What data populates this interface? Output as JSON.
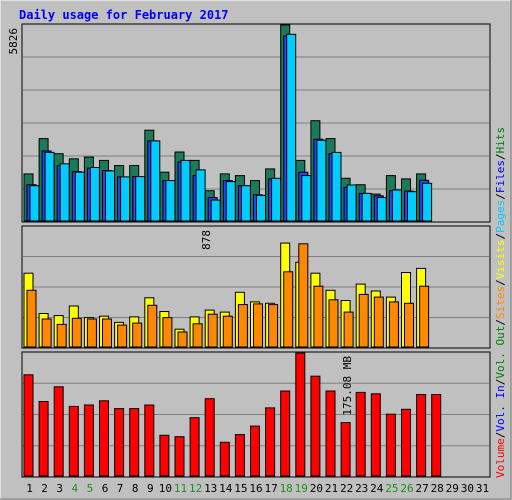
{
  "chart_data": {
    "type": "bar",
    "title": "Daily usage for February 2017",
    "categories": [
      "1",
      "2",
      "3",
      "4",
      "5",
      "6",
      "7",
      "8",
      "9",
      "10",
      "11",
      "12",
      "13",
      "14",
      "15",
      "16",
      "17",
      "18",
      "19",
      "20",
      "21",
      "22",
      "23",
      "24",
      "25",
      "26",
      "27",
      "28",
      "29",
      "30",
      "31"
    ],
    "weekend_days": [
      "4",
      "5",
      "11",
      "12",
      "18",
      "19",
      "25",
      "26"
    ],
    "panels": [
      {
        "id": "hits-files-pages",
        "max_label": "5826",
        "ylim": [
          0,
          5826
        ],
        "series": [
          {
            "name": "Hits",
            "color": "#1a7a5a",
            "values": [
              1400,
              2450,
              2000,
              1850,
              1900,
              1800,
              1650,
              1650,
              2700,
              1450,
              2050,
              1800,
              900,
              1400,
              1350,
              1200,
              1550,
              5826,
              1800,
              2980,
              2450,
              1270,
              1080,
              800,
              1350,
              1250,
              1400,
              null,
              null,
              null,
              null
            ]
          },
          {
            "name": "Files",
            "color": "#2244ff",
            "values": [
              1080,
              2080,
              1640,
              1470,
              1570,
              1500,
              1310,
              1320,
              2380,
              1200,
              1750,
              1350,
              700,
              1200,
              1050,
              780,
              1250,
              5500,
              1450,
              2430,
              2000,
              1000,
              820,
              750,
              900,
              890,
              1210,
              null,
              null,
              null,
              null
            ]
          },
          {
            "name": "Pages",
            "color": "#00ccff",
            "values": [
              1050,
              2040,
              1700,
              1450,
              1590,
              1490,
              1310,
              1320,
              2380,
              1200,
              1800,
              1520,
              620,
              1170,
              1050,
              760,
              1270,
              5550,
              1350,
              2400,
              2040,
              1070,
              820,
              700,
              920,
              870,
              1120,
              null,
              null,
              null,
              null
            ]
          }
        ]
      },
      {
        "id": "visits-sites",
        "max_label": "878",
        "ylim": [
          0,
          878
        ],
        "series": [
          {
            "name": "Visits",
            "color": "#ffff00",
            "values": [
              540,
              245,
              230,
              300,
              215,
              225,
              180,
              220,
              360,
              260,
              130,
              220,
              270,
              255,
              400,
              330,
              320,
              760,
              620,
              540,
              415,
              340,
              460,
              410,
              365,
              545,
              575,
              null,
              null,
              null,
              null
            ]
          },
          {
            "name": "Sites",
            "color": "#ff8800",
            "values": [
              415,
              205,
              165,
              210,
              205,
              205,
              160,
              175,
              305,
              215,
              110,
              170,
              240,
              225,
              310,
              315,
              310,
              550,
              755,
              445,
              345,
              255,
              385,
              365,
              330,
              320,
              445,
              null,
              null,
              null,
              null
            ]
          }
        ]
      },
      {
        "id": "volume",
        "max_label": "175.08 MB",
        "ylim": [
          0,
          175.08
        ],
        "series": [
          {
            "name": "Volume",
            "color": "#ff0000",
            "values": [
              144,
              106,
              127,
              99,
              101,
              107,
              96,
              96,
              101,
              58,
              56,
              83,
              110,
              48,
              59,
              71,
              97,
              121,
              175,
              142,
              121,
              76,
              119,
              117,
              88,
              95,
              116,
              116,
              null,
              null,
              null
            ]
          }
        ]
      }
    ],
    "right_legend": [
      {
        "name": "Volume",
        "color": "#ff0000"
      },
      {
        "name": "Vol. In",
        "color": "#0000ff"
      },
      {
        "name": "Vol. Out",
        "color": "#008000"
      },
      {
        "name": "Sites",
        "color": "#ff8800"
      },
      {
        "name": "Visits",
        "color": "#ffff00"
      },
      {
        "name": "Pages",
        "color": "#00ccff"
      },
      {
        "name": "Files",
        "color": "#0000ff"
      },
      {
        "name": "Hits",
        "color": "#008000"
      }
    ],
    "colors": {
      "background": "#c0c0c0",
      "title": "#0000ff",
      "weekday_label": "#000000",
      "weekend_label": "#228b22"
    }
  }
}
